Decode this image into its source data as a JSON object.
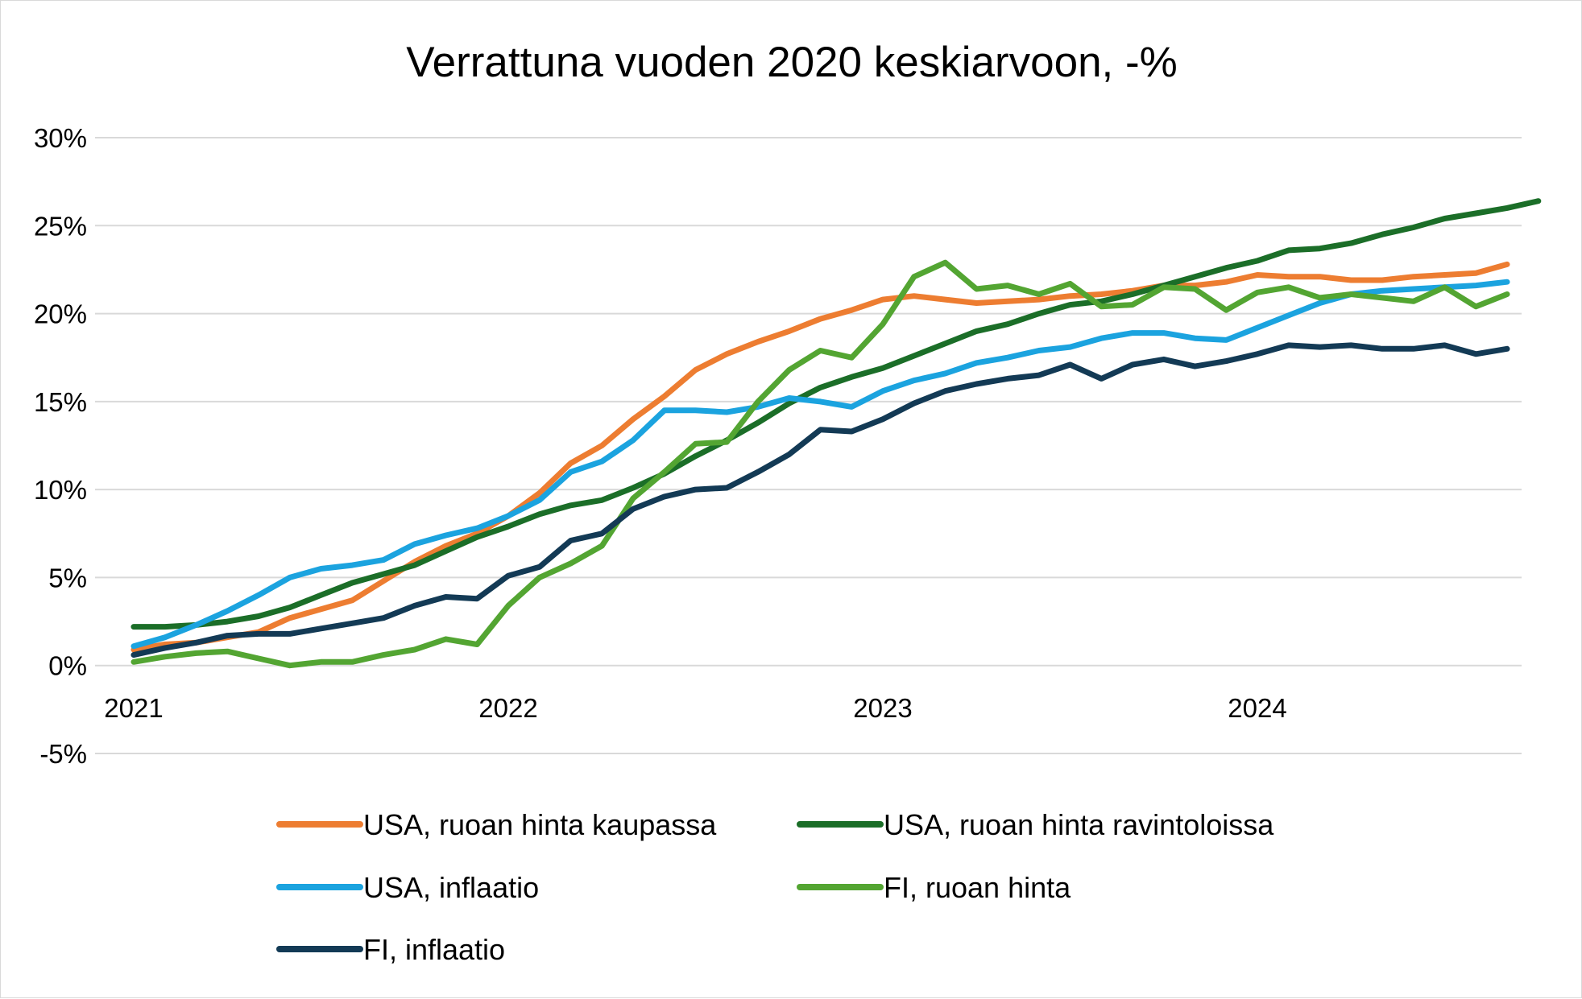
{
  "chart_data": {
    "type": "line",
    "title": "Verrattuna vuoden 2020 keskiarvoon, -%",
    "xlabel": "",
    "ylabel": "",
    "ylim": [
      -5,
      30
    ],
    "y_ticks": [
      30,
      25,
      20,
      15,
      10,
      5,
      0,
      -5
    ],
    "y_tick_labels": [
      "30%",
      "25%",
      "20%",
      "15%",
      "10%",
      "5%",
      "0%",
      "-5%"
    ],
    "x_range_months": [
      0,
      48
    ],
    "x_ticks": [
      0,
      12,
      24,
      36
    ],
    "x_tick_labels": [
      "2021",
      "2022",
      "2023",
      "2024"
    ],
    "grid": true,
    "legend_position": "bottom",
    "series": [
      {
        "name": "USA, ruoan hinta kaupassa",
        "color": "#ed7d31",
        "values": [
          0.9,
          1.2,
          1.3,
          1.6,
          1.9,
          2.7,
          3.2,
          3.7,
          4.8,
          5.9,
          6.8,
          7.5,
          8.5,
          9.8,
          11.5,
          12.5,
          14.0,
          15.3,
          16.8,
          17.7,
          18.4,
          19.0,
          19.7,
          20.2,
          20.8,
          21.0,
          20.8,
          20.6,
          20.7,
          20.8,
          21.0,
          21.1,
          21.3,
          21.6,
          21.6,
          21.8,
          22.2,
          22.1,
          22.1,
          21.9,
          21.9,
          22.1,
          22.2,
          22.3,
          22.8
        ]
      },
      {
        "name": "USA, ruoan hinta ravintoloissa",
        "color": "#1b6e28",
        "values": [
          2.2,
          2.2,
          2.3,
          2.5,
          2.8,
          3.3,
          4.0,
          4.7,
          5.2,
          5.7,
          6.5,
          7.3,
          7.9,
          8.6,
          9.1,
          9.4,
          10.1,
          10.9,
          11.9,
          12.8,
          13.8,
          14.9,
          15.8,
          16.4,
          16.9,
          17.6,
          18.3,
          19.0,
          19.4,
          20.0,
          20.5,
          20.7,
          21.1,
          21.6,
          22.1,
          22.6,
          23.0,
          23.6,
          23.7,
          24.0,
          24.5,
          24.9,
          25.4,
          25.7,
          26.0,
          26.4
        ]
      },
      {
        "name": "USA, inflaatio",
        "color": "#1ba3df",
        "values": [
          1.1,
          1.6,
          2.3,
          3.1,
          4.0,
          5.0,
          5.5,
          5.7,
          6.0,
          6.9,
          7.4,
          7.8,
          8.5,
          9.4,
          11.0,
          11.6,
          12.8,
          14.5,
          14.5,
          14.4,
          14.7,
          15.2,
          15.0,
          14.7,
          15.6,
          16.2,
          16.6,
          17.2,
          17.5,
          17.9,
          18.1,
          18.6,
          18.9,
          18.9,
          18.6,
          18.5,
          19.2,
          19.9,
          20.6,
          21.1,
          21.3,
          21.4,
          21.5,
          21.6,
          21.8
        ]
      },
      {
        "name": "FI, ruoan hinta",
        "color": "#53a532",
        "values": [
          0.2,
          0.5,
          0.7,
          0.8,
          0.4,
          0.0,
          0.2,
          0.2,
          0.6,
          0.9,
          1.5,
          1.2,
          3.4,
          5.0,
          5.8,
          6.8,
          9.5,
          11.0,
          12.6,
          12.7,
          15.0,
          16.8,
          17.9,
          17.5,
          19.4,
          22.1,
          22.9,
          21.4,
          21.6,
          21.1,
          21.7,
          20.4,
          20.5,
          21.5,
          21.4,
          20.2,
          21.2,
          21.5,
          20.9,
          21.1,
          20.9,
          20.7,
          21.5,
          20.4,
          21.1
        ]
      },
      {
        "name": "FI, inflaatio",
        "color": "#133a55",
        "values": [
          0.6,
          1.0,
          1.3,
          1.7,
          1.8,
          1.8,
          2.1,
          2.4,
          2.7,
          3.4,
          3.9,
          3.8,
          5.1,
          5.6,
          7.1,
          7.5,
          8.9,
          9.6,
          10.0,
          10.1,
          11.0,
          12.0,
          13.4,
          13.3,
          14.0,
          14.9,
          15.6,
          16.0,
          16.3,
          16.5,
          17.1,
          16.3,
          17.1,
          17.4,
          17.0,
          17.3,
          17.7,
          18.2,
          18.1,
          18.2,
          18.0,
          18.0,
          18.2,
          17.7,
          18.0
        ]
      }
    ]
  }
}
